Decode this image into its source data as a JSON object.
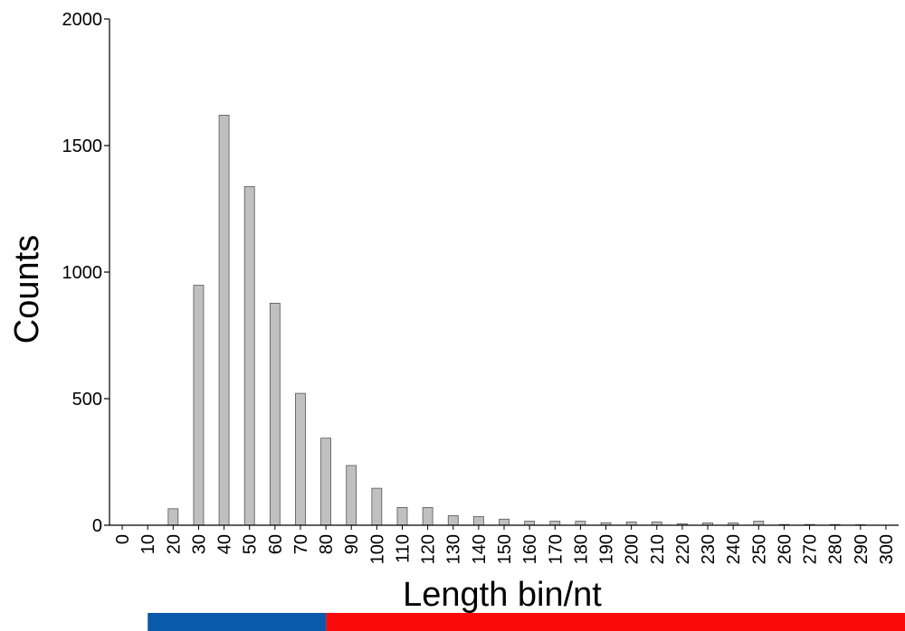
{
  "chart_data": {
    "type": "bar",
    "xlabel": "Length bin/nt",
    "ylabel": "Counts",
    "ylim": [
      0,
      2000
    ],
    "yticks": [
      0,
      500,
      1000,
      1500,
      2000
    ],
    "grid": false,
    "categories": [
      "0",
      "10",
      "20",
      "30",
      "40",
      "50",
      "60",
      "70",
      "80",
      "90",
      "100",
      "110",
      "120",
      "130",
      "140",
      "150",
      "160",
      "170",
      "180",
      "190",
      "200",
      "210",
      "220",
      "230",
      "240",
      "250",
      "260",
      "270",
      "280",
      "290",
      "300"
    ],
    "values": [
      0,
      0,
      65,
      948,
      1620,
      1338,
      877,
      521,
      344,
      236,
      146,
      70,
      70,
      38,
      34,
      24,
      16,
      16,
      16,
      10,
      13,
      13,
      6,
      9,
      9,
      16,
      3,
      3,
      3,
      2,
      0
    ],
    "bar_fill": "#c0c0c0",
    "bar_stroke": "#555555",
    "range_strip": [
      {
        "from": "10",
        "to": "80",
        "color": "#0a5aac"
      },
      {
        "from": "80",
        "to": "300",
        "color": "#fa0a0a"
      }
    ]
  }
}
